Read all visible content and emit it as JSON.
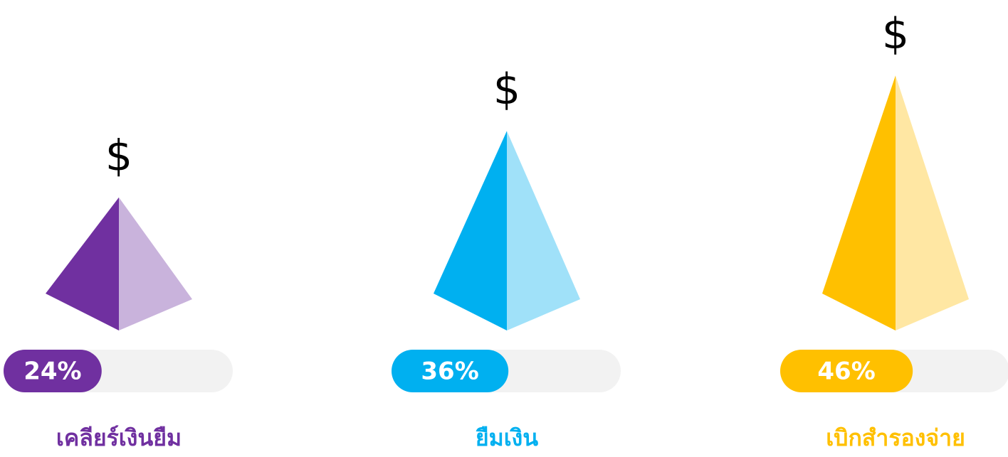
{
  "chart_data": {
    "type": "pyramid",
    "categories": [
      "เคลียร์เงินยืม",
      "ยืมเงิน",
      "เบิกสำรองจ่าย"
    ],
    "values": [
      24,
      36,
      46
    ],
    "value_labels": [
      "24%",
      "36%",
      "46%"
    ],
    "colors": [
      "#7030a0",
      "#00b0f0",
      "#ffc000"
    ],
    "light_colors": [
      "#c9b3dc",
      "#a0e1f9",
      "#ffe7a3"
    ],
    "symbol": "$"
  }
}
